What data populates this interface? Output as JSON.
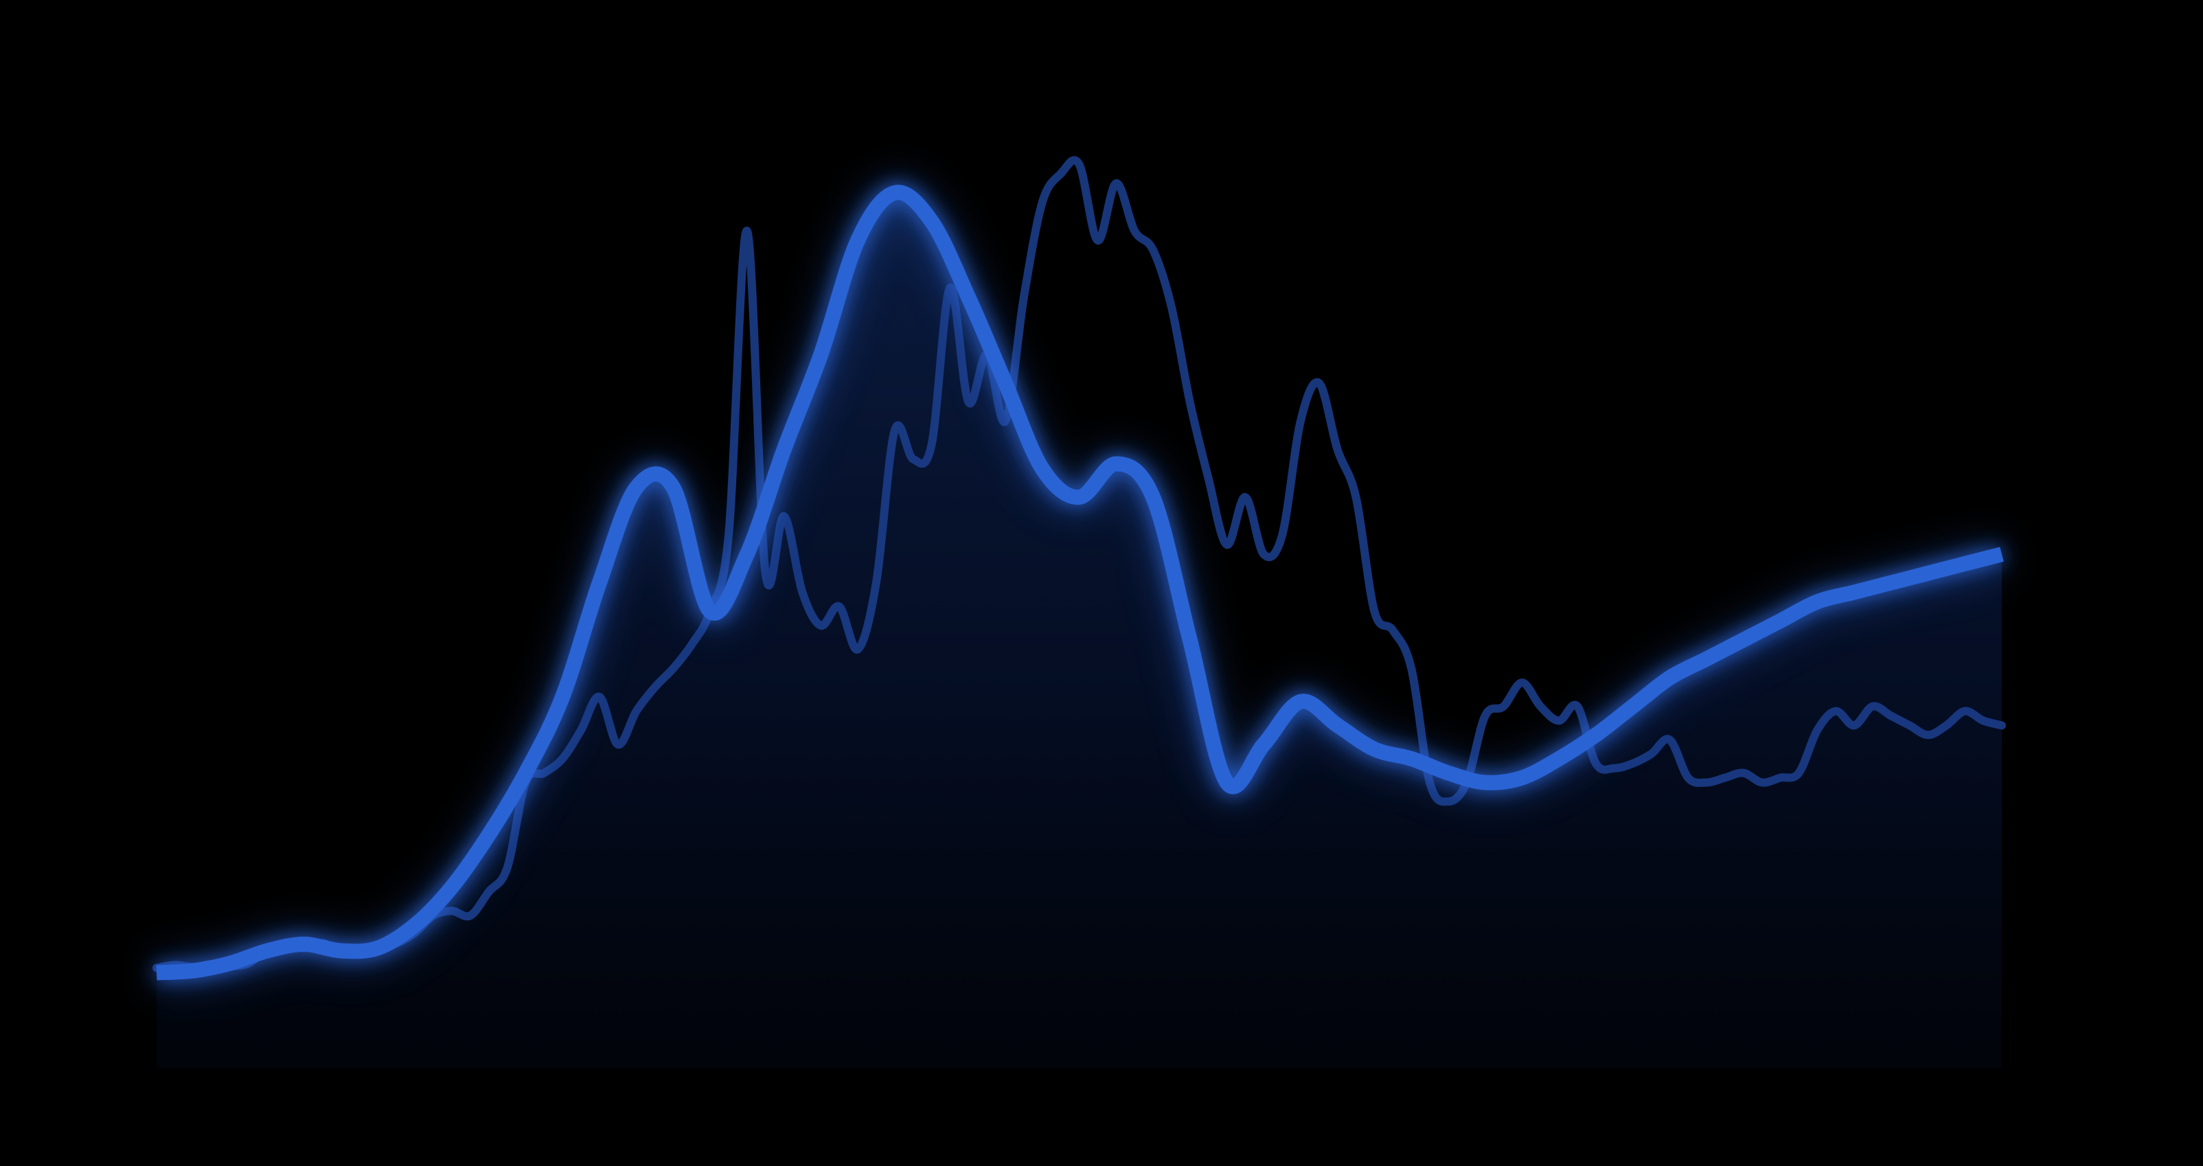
{
  "chart_data": {
    "type": "line",
    "title": "",
    "xlabel": "",
    "ylabel": "",
    "grid": false,
    "legend": "none",
    "xlim": [
      0,
      100
    ],
    "ylim": [
      0,
      100
    ],
    "colors": {
      "background": "#000000",
      "smooth_line": "#2a63d4",
      "raw_line": "#1c3f8f",
      "glow": "#2a63d4",
      "area_fill": "#0a1a3a"
    },
    "series": [
      {
        "role": "raw",
        "x": [
          0,
          1,
          2,
          3,
          4,
          5,
          6,
          7,
          8,
          9,
          10,
          11,
          12,
          13,
          14,
          15,
          16,
          17,
          18,
          19,
          20,
          21,
          22,
          23,
          24,
          25,
          26,
          27,
          28,
          29,
          30,
          31,
          32,
          33,
          34,
          35,
          36,
          37,
          38,
          39,
          40,
          41,
          42,
          43,
          44,
          45,
          46,
          47,
          48,
          49,
          50,
          51,
          52,
          53,
          54,
          55,
          56,
          57,
          58,
          59,
          60,
          61,
          62,
          63,
          64,
          65,
          66,
          67,
          68,
          69,
          70,
          71,
          72,
          73,
          74,
          75,
          76,
          77,
          78,
          79,
          80,
          81,
          82,
          83,
          84,
          85,
          86,
          87,
          88,
          89,
          90,
          91,
          92,
          93,
          94,
          95,
          96,
          97,
          98,
          99,
          100
        ],
        "y": [
          10.5,
          10.8,
          10.6,
          10.9,
          10.7,
          11.0,
          12.5,
          13.0,
          12.6,
          13.1,
          12.2,
          12.4,
          12.8,
          13.1,
          14.2,
          16.0,
          16.5,
          16.0,
          18.5,
          21.0,
          30.0,
          31.0,
          32.5,
          35.5,
          39.0,
          34.0,
          37.5,
          40.0,
          42.0,
          44.5,
          48.0,
          56.0,
          88.0,
          52.0,
          58.0,
          50.0,
          46.5,
          48.5,
          44.0,
          51.0,
          67.0,
          64.0,
          65.5,
          82.0,
          70.0,
          75.0,
          68.0,
          81.0,
          91.0,
          94.0,
          95.0,
          87.0,
          93.0,
          88.0,
          86.0,
          80.0,
          70.0,
          62.0,
          55.0,
          60.0,
          54.0,
          56.0,
          68.0,
          72.0,
          65.0,
          60.0,
          48.0,
          46.0,
          42.0,
          30.0,
          28.0,
          30.0,
          37.0,
          38.0,
          40.5,
          38.0,
          36.5,
          38.0,
          32.0,
          31.5,
          32.0,
          33.0,
          34.5,
          30.5,
          30.0,
          30.5,
          31.0,
          30.0,
          30.5,
          31.0,
          35.5,
          37.5,
          36.0,
          38.0,
          37.0,
          36.0,
          35.0,
          36.0,
          37.5,
          36.5,
          36.0
        ]
      },
      {
        "role": "smoothed",
        "x": [
          0,
          2,
          4,
          6,
          8,
          10,
          12,
          14,
          16,
          18,
          20,
          22,
          24,
          26,
          28,
          30,
          32,
          34,
          36,
          38,
          40,
          42,
          44,
          46,
          48,
          50,
          52,
          54,
          56,
          58,
          60,
          62,
          64,
          66,
          68,
          70,
          72,
          74,
          76,
          78,
          80,
          82,
          84,
          86,
          88,
          90,
          92,
          94,
          96,
          98,
          100
        ],
        "y": [
          10.0,
          10.2,
          11.0,
          12.3,
          13.0,
          12.3,
          12.6,
          15.0,
          19.0,
          24.5,
          31.0,
          39.0,
          51.0,
          61.0,
          61.0,
          48.0,
          54.0,
          65.0,
          75.0,
          87.0,
          92.0,
          89.0,
          81.0,
          72.0,
          63.0,
          60.0,
          63.5,
          60.0,
          45.0,
          30.0,
          34.0,
          38.5,
          36.0,
          33.5,
          32.5,
          31.0,
          30.0,
          30.5,
          32.5,
          35.0,
          38.0,
          41.0,
          43.0,
          45.0,
          47.0,
          49.0,
          50.0,
          51.0,
          52.0,
          53.0,
          54.0
        ]
      }
    ]
  }
}
